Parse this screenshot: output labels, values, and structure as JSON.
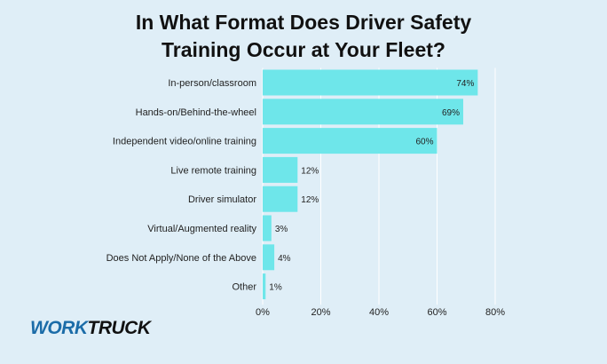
{
  "chart_data": {
    "type": "bar",
    "orientation": "horizontal",
    "title_lines": [
      "In What Format Does Driver Safety",
      "Training Occur at Your Fleet?"
    ],
    "categories": [
      "In-person/classroom",
      "Hands-on/Behind-the-wheel",
      "Independent video/online training",
      "Live remote training",
      "Driver simulator",
      "Virtual/Augmented reality",
      "Does Not Apply/None of the Above",
      "Other"
    ],
    "values": [
      74,
      69,
      60,
      12,
      12,
      3,
      4,
      1
    ],
    "value_labels": [
      "74%",
      "69%",
      "60%",
      "12%",
      "12%",
      "3%",
      "4%",
      "1%"
    ],
    "xlim": [
      0,
      80
    ],
    "xticks": [
      0,
      20,
      40,
      60,
      80
    ],
    "xtick_labels": [
      "0%",
      "20%",
      "40%",
      "60%",
      "80%"
    ],
    "grid": "vertical",
    "bar_color": "#6ee6ea"
  },
  "brand": {
    "logo_part1": "WORK",
    "logo_part2": "TRUCK",
    "logo_icon": "worktruck-logo"
  }
}
